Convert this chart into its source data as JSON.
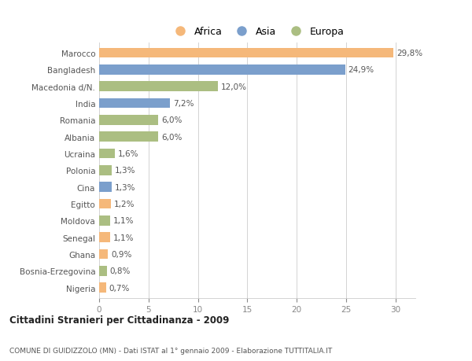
{
  "categories": [
    "Marocco",
    "Bangladesh",
    "Macedonia d/N.",
    "India",
    "Romania",
    "Albania",
    "Ucraina",
    "Polonia",
    "Cina",
    "Egitto",
    "Moldova",
    "Senegal",
    "Ghana",
    "Bosnia-Erzegovina",
    "Nigeria"
  ],
  "values": [
    29.8,
    24.9,
    12.0,
    7.2,
    6.0,
    6.0,
    1.6,
    1.3,
    1.3,
    1.2,
    1.1,
    1.1,
    0.9,
    0.8,
    0.7
  ],
  "labels": [
    "29,8%",
    "24,9%",
    "12,0%",
    "7,2%",
    "6,0%",
    "6,0%",
    "1,6%",
    "1,3%",
    "1,3%",
    "1,2%",
    "1,1%",
    "1,1%",
    "0,9%",
    "0,8%",
    "0,7%"
  ],
  "continents": [
    "Africa",
    "Asia",
    "Europa",
    "Asia",
    "Europa",
    "Europa",
    "Europa",
    "Europa",
    "Asia",
    "Africa",
    "Europa",
    "Africa",
    "Africa",
    "Europa",
    "Africa"
  ],
  "colors": {
    "Africa": "#F5B87A",
    "Asia": "#7B9FCC",
    "Europa": "#ABBE82"
  },
  "title1": "Cittadini Stranieri per Cittadinanza - 2009",
  "title2": "COMUNE DI GUIDIZZOLO (MN) - Dati ISTAT al 1° gennaio 2009 - Elaborazione TUTTITALIA.IT",
  "xlim": [
    0,
    32
  ],
  "xticks": [
    0,
    5,
    10,
    15,
    20,
    25,
    30
  ],
  "background_color": "#ffffff",
  "plot_background": "#ffffff",
  "bar_height": 0.6,
  "label_fontsize": 7.5,
  "tick_fontsize": 7.5,
  "legend_order": [
    "Africa",
    "Asia",
    "Europa"
  ]
}
